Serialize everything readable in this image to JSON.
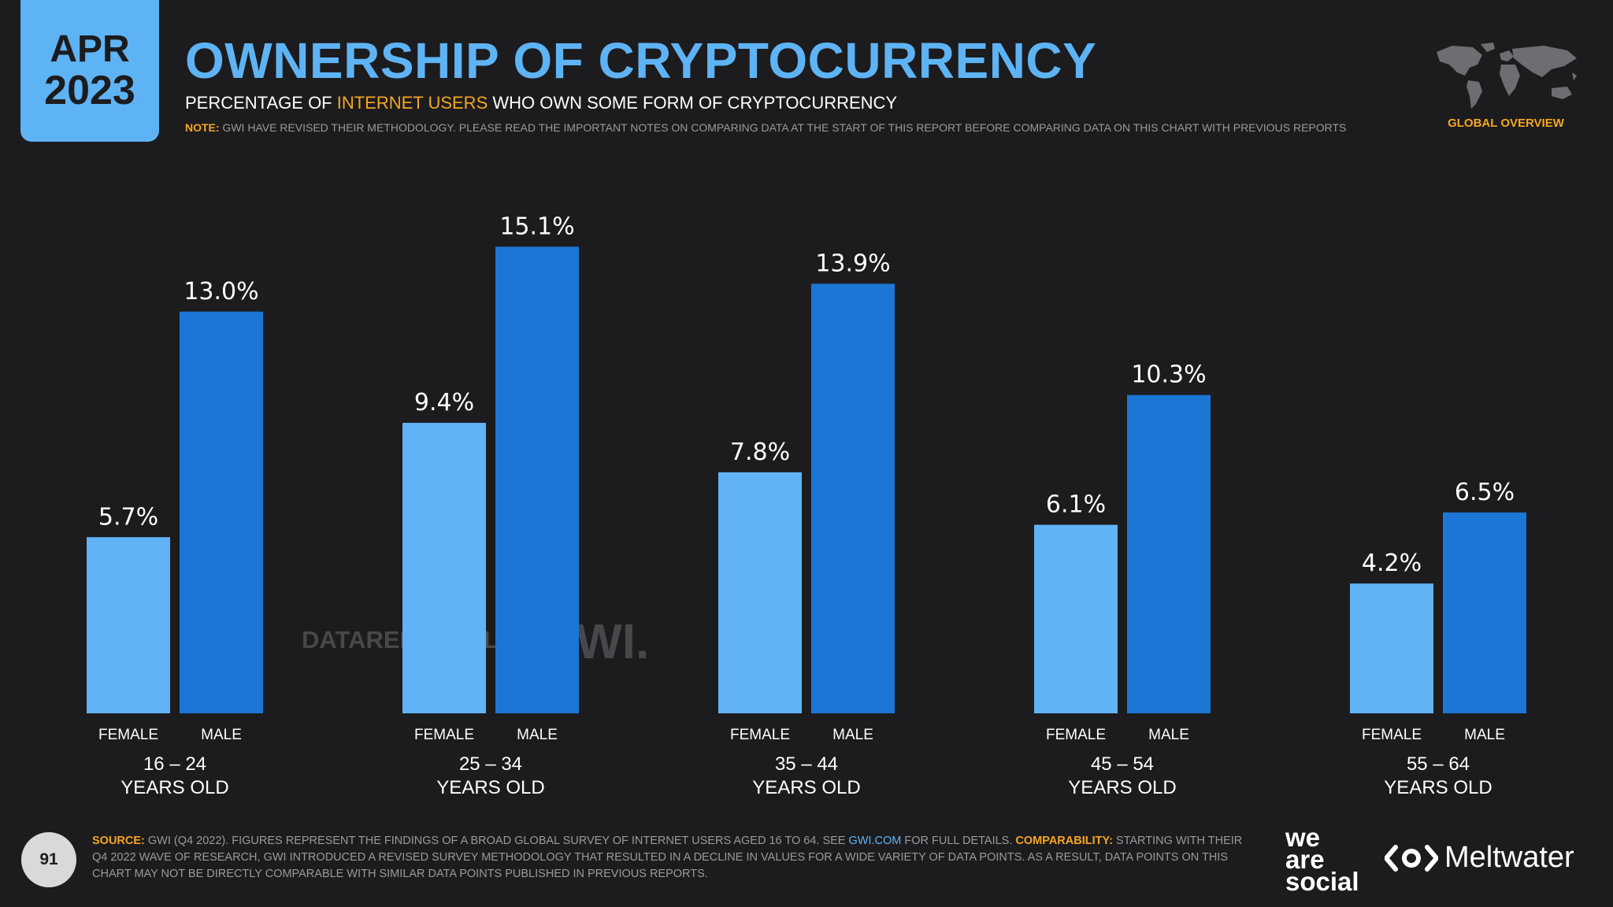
{
  "header": {
    "date_month": "APR",
    "date_year": "2023",
    "title": "OWNERSHIP OF CRYPTOCURRENCY",
    "subtitle_pre": "PERCENTAGE OF ",
    "subtitle_highlight": "INTERNET USERS",
    "subtitle_post": " WHO OWN SOME FORM OF CRYPTOCURRENCY",
    "note_label": "NOTE:",
    "note_text": " GWI HAVE REVISED THEIR METHODOLOGY. PLEASE READ THE IMPORTANT NOTES ON COMPARING DATA AT THE START OF THIS REPORT BEFORE COMPARING DATA ON THIS CHART WITH PREVIOUS REPORTS",
    "region_label": "GLOBAL OVERVIEW"
  },
  "watermarks": {
    "datareportal": "DATAREPORTAL",
    "gwi": "GWI."
  },
  "footer": {
    "page_number": "91",
    "source_label": "SOURCE:",
    "source_text": " GWI (Q4 2022). FIGURES REPRESENT THE FINDINGS OF A BROAD GLOBAL SURVEY OF INTERNET USERS AGED 16 TO 64. SEE ",
    "source_link": "GWI.COM",
    "source_text2": " FOR FULL DETAILS. ",
    "comparability_label": "COMPARABILITY:",
    "comparability_text": " STARTING WITH THEIR Q4 2022 WAVE OF RESEARCH, GWI INTRODUCED A REVISED SURVEY METHODOLOGY THAT RESULTED IN A DECLINE IN VALUES FOR A WIDE VARIETY OF DATA POINTS. AS A RESULT, DATA POINTS ON THIS CHART MAY NOT BE DIRECTLY COMPARABLE WITH SIMILAR DATA POINTS PUBLISHED IN PREVIOUS REPORTS.",
    "brand1": "we are social",
    "brand2": "Meltwater"
  },
  "colors": {
    "background": "#1c1c1e",
    "accent_blue": "#5eb3f4",
    "female_bar": "#62b3f5",
    "male_bar": "#1c76d6",
    "highlight": "#f5a623"
  },
  "chart_data": {
    "type": "bar",
    "categories": [
      "16 – 24 YEARS OLD",
      "25 – 34 YEARS OLD",
      "35 – 44 YEARS OLD",
      "45 – 54 YEARS OLD",
      "55 – 64 YEARS OLD"
    ],
    "category_lines": [
      [
        "16 – 24",
        "YEARS OLD"
      ],
      [
        "25 – 34",
        "YEARS OLD"
      ],
      [
        "35 – 44",
        "YEARS OLD"
      ],
      [
        "45 – 54",
        "YEARS OLD"
      ],
      [
        "55 – 64",
        "YEARS OLD"
      ]
    ],
    "series": [
      {
        "name": "FEMALE",
        "values": [
          5.7,
          9.4,
          7.8,
          6.1,
          4.2
        ],
        "labels": [
          "5.7%",
          "9.4%",
          "7.8%",
          "6.1%",
          "4.2%"
        ]
      },
      {
        "name": "MALE",
        "values": [
          13.0,
          15.1,
          13.9,
          10.3,
          6.5
        ],
        "labels": [
          "13.0%",
          "15.1%",
          "13.9%",
          "10.3%",
          "6.5%"
        ]
      }
    ],
    "unit": "%",
    "ylim": [
      0,
      16
    ],
    "grid": false,
    "legend": "none"
  }
}
